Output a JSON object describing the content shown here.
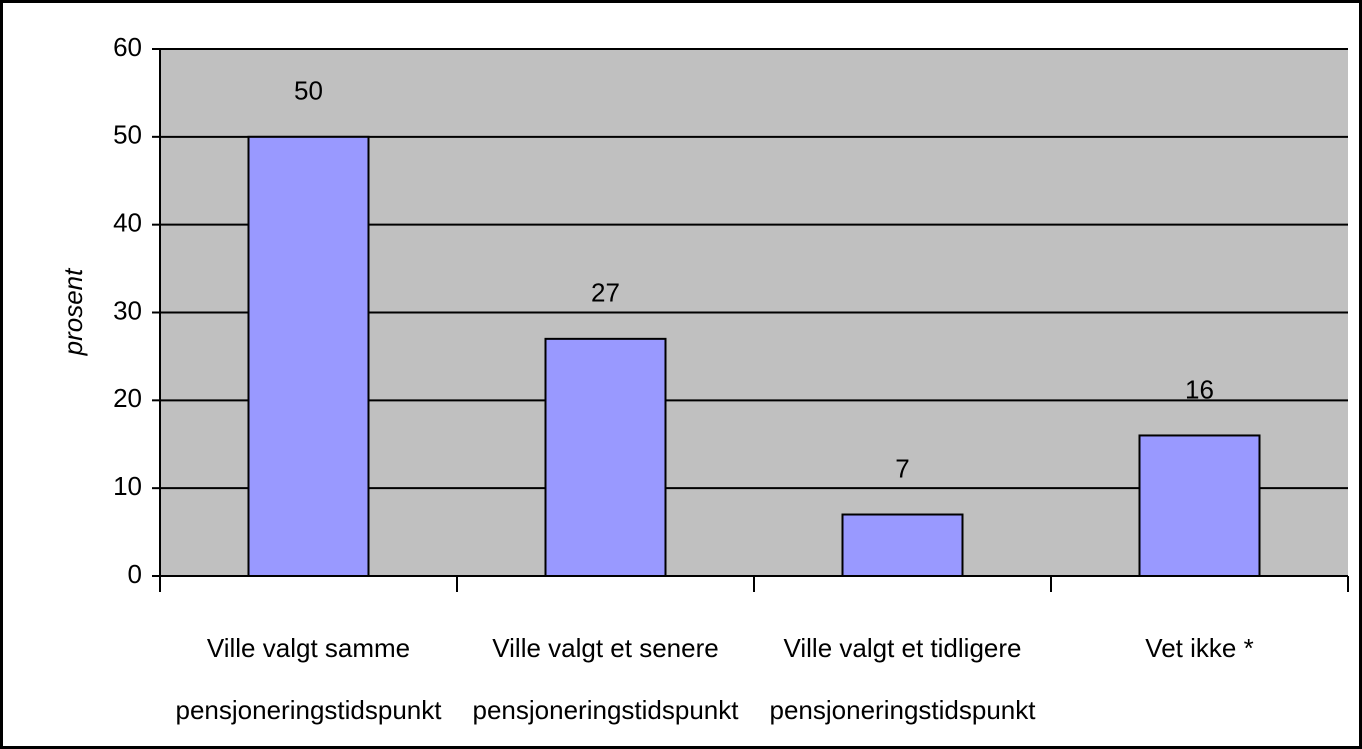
{
  "chart_data": {
    "type": "bar",
    "y_label": "prosent",
    "categories": [
      "Ville valgt samme pensjoneringstidspunkt",
      "Ville valgt et senere pensjoneringstidspunkt",
      "Ville valgt et tidligere pensjoneringstidspunkt",
      "Vet ikke *"
    ],
    "values": [
      50,
      27,
      7,
      16
    ],
    "color": "#9999ff",
    "ylim": [
      0,
      60
    ],
    "yticks": [
      0,
      10,
      20,
      30,
      40,
      50,
      60
    ],
    "grid": true
  }
}
